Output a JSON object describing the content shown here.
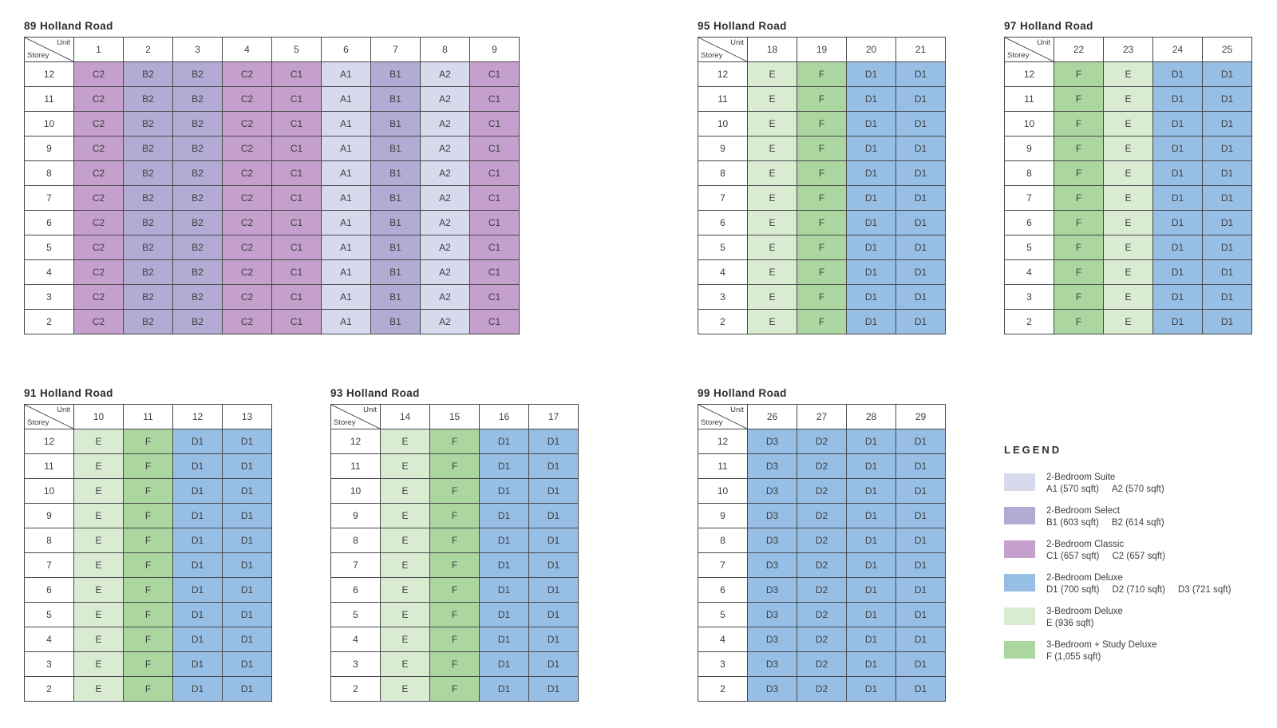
{
  "corner_cell": {
    "unit_label": "Unit",
    "storey_label": "Storey"
  },
  "type_colors": {
    "A1": "#d7daed",
    "A2": "#d7daed",
    "B1": "#b3abd4",
    "B2": "#b3abd4",
    "C1": "#c5a0cc",
    "C2": "#c5a0cc",
    "D1": "#97bfe6",
    "D2": "#97bfe6",
    "D3": "#97bfe6",
    "E": "#d9ecd2",
    "F": "#acd6a0"
  },
  "chart_data": [
    {
      "type": "table",
      "title": "89 Holland Road",
      "columns": [
        "1",
        "2",
        "3",
        "4",
        "5",
        "6",
        "7",
        "8",
        "9"
      ],
      "storeys": [
        "12",
        "11",
        "10",
        "9",
        "8",
        "7",
        "6",
        "5",
        "4",
        "3",
        "2"
      ],
      "types_by_unit_all_storeys": [
        "C2",
        "B2",
        "B2",
        "C2",
        "C1",
        "A1",
        "B1",
        "A2",
        "C1"
      ]
    },
    {
      "type": "table",
      "title": "95 Holland Road",
      "columns": [
        "18",
        "19",
        "20",
        "21"
      ],
      "storeys": [
        "12",
        "11",
        "10",
        "9",
        "8",
        "7",
        "6",
        "5",
        "4",
        "3",
        "2"
      ],
      "types_by_unit_all_storeys": [
        "E",
        "F",
        "D1",
        "D1"
      ]
    },
    {
      "type": "table",
      "title": "97 Holland Road",
      "columns": [
        "22",
        "23",
        "24",
        "25"
      ],
      "storeys": [
        "12",
        "11",
        "10",
        "9",
        "8",
        "7",
        "6",
        "5",
        "4",
        "3",
        "2"
      ],
      "types_by_unit_all_storeys": [
        "F",
        "E",
        "D1",
        "D1"
      ]
    },
    {
      "type": "table",
      "title": "91 Holland Road",
      "columns": [
        "10",
        "11",
        "12",
        "13"
      ],
      "storeys": [
        "12",
        "11",
        "10",
        "9",
        "8",
        "7",
        "6",
        "5",
        "4",
        "3",
        "2"
      ],
      "types_by_unit_all_storeys": [
        "E",
        "F",
        "D1",
        "D1"
      ]
    },
    {
      "type": "table",
      "title": "93 Holland Road",
      "columns": [
        "14",
        "15",
        "16",
        "17"
      ],
      "storeys": [
        "12",
        "11",
        "10",
        "9",
        "8",
        "7",
        "6",
        "5",
        "4",
        "3",
        "2"
      ],
      "types_by_unit_all_storeys": [
        "E",
        "F",
        "D1",
        "D1"
      ]
    },
    {
      "type": "table",
      "title": "99 Holland Road",
      "columns": [
        "26",
        "27",
        "28",
        "29"
      ],
      "storeys": [
        "12",
        "11",
        "10",
        "9",
        "8",
        "7",
        "6",
        "5",
        "4",
        "3",
        "2"
      ],
      "types_by_unit_all_storeys": [
        "D3",
        "D2",
        "D1",
        "D1"
      ]
    }
  ],
  "legend": {
    "title": "LEGEND",
    "items": [
      {
        "name": "2-Bedroom Suite",
        "sizes": [
          "A1 (570 sqft)",
          "A2 (570 sqft)"
        ],
        "color": "#d7daed"
      },
      {
        "name": "2-Bedroom Select",
        "sizes": [
          "B1 (603 sqft)",
          "B2 (614 sqft)"
        ],
        "color": "#b3abd4"
      },
      {
        "name": "2-Bedroom Classic",
        "sizes": [
          "C1 (657 sqft)",
          "C2 (657 sqft)"
        ],
        "color": "#c5a0cc"
      },
      {
        "name": "2-Bedroom Deluxe",
        "sizes": [
          "D1 (700 sqft)",
          "D2 (710 sqft)",
          "D3 (721 sqft)"
        ],
        "color": "#97bfe6"
      },
      {
        "name": "3-Bedroom Deluxe",
        "sizes": [
          "E (936 sqft)"
        ],
        "color": "#d9ecd2"
      },
      {
        "name": "3-Bedroom + Study Deluxe",
        "sizes": [
          "F (1,055 sqft)"
        ],
        "color": "#acd6a0"
      }
    ]
  }
}
